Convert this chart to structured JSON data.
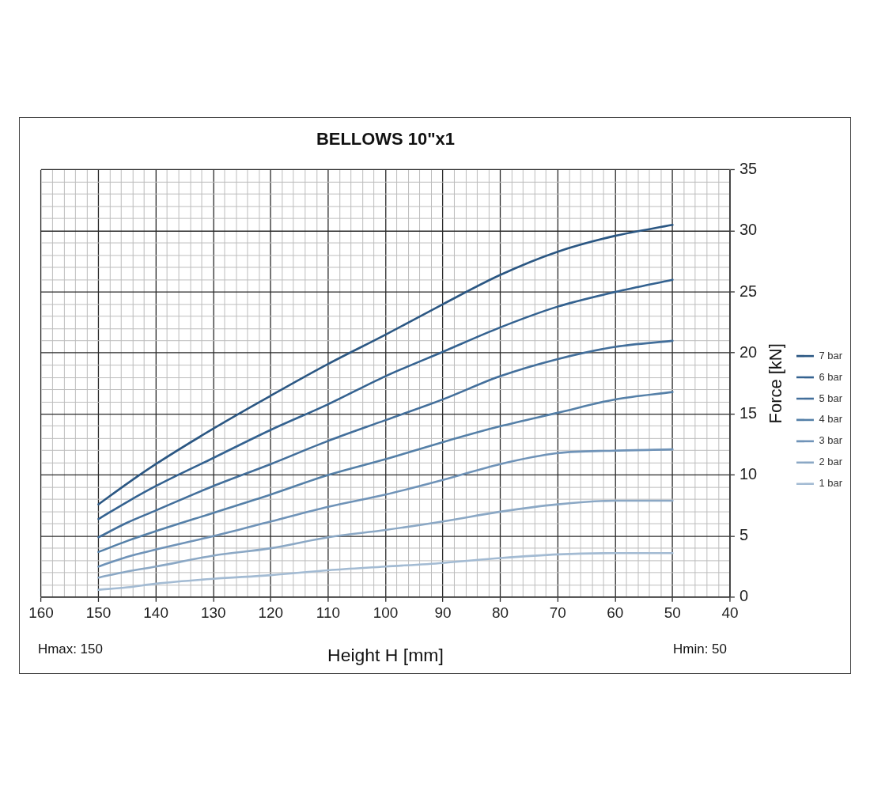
{
  "chart_data": {
    "type": "line",
    "title": "BELLOWS 10\"x1",
    "xlabel": "Height H [mm]",
    "ylabel": "Force [kN]",
    "x": [
      150,
      145,
      140,
      130,
      120,
      110,
      100,
      90,
      80,
      70,
      60,
      50
    ],
    "series": [
      {
        "name": "7 bar",
        "color": "#2b5783",
        "values": [
          7.6,
          9.3,
          10.9,
          13.8,
          16.5,
          19.1,
          21.5,
          24.0,
          26.4,
          28.3,
          29.6,
          30.5
        ]
      },
      {
        "name": "6 bar",
        "color": "#346290",
        "values": [
          6.4,
          7.8,
          9.1,
          11.4,
          13.7,
          15.8,
          18.1,
          20.1,
          22.1,
          23.8,
          25.0,
          26.0
        ]
      },
      {
        "name": "5 bar",
        "color": "#436f9b",
        "values": [
          4.9,
          6.1,
          7.1,
          9.1,
          10.9,
          12.8,
          14.5,
          16.2,
          18.1,
          19.5,
          20.5,
          21.0
        ]
      },
      {
        "name": "4 bar",
        "color": "#5580a8",
        "values": [
          3.7,
          4.6,
          5.4,
          6.9,
          8.4,
          10.0,
          11.3,
          12.7,
          14.0,
          15.1,
          16.2,
          16.8
        ]
      },
      {
        "name": "3 bar",
        "color": "#6f93b8",
        "values": [
          2.5,
          3.3,
          3.9,
          5.0,
          6.2,
          7.4,
          8.4,
          9.6,
          10.9,
          11.8,
          12.0,
          12.1
        ]
      },
      {
        "name": "2 bar",
        "color": "#8ba8c5",
        "values": [
          1.6,
          2.1,
          2.5,
          3.4,
          4.0,
          4.9,
          5.5,
          6.2,
          7.0,
          7.6,
          7.9,
          7.9
        ]
      },
      {
        "name": "1 bar",
        "color": "#a3bbd3",
        "values": [
          0.6,
          0.8,
          1.1,
          1.5,
          1.8,
          2.2,
          2.5,
          2.8,
          3.2,
          3.5,
          3.6,
          3.6
        ]
      }
    ],
    "xlim": [
      160,
      40
    ],
    "xticks": [
      160,
      {
        "value": 158,
        "label": null
      },
      {
        "value": 156,
        "label": null
      },
      {
        "value": 154,
        "label": null
      },
      {
        "value": 152,
        "label": null
      },
      150,
      {
        "value": 148,
        "label": null
      },
      {
        "value": 146,
        "label": null
      },
      {
        "value": 144,
        "label": null
      },
      {
        "value": 142,
        "label": null
      },
      140,
      {
        "value": 138,
        "label": null
      },
      {
        "value": 136,
        "label": null
      },
      {
        "value": 134,
        "label": null
      },
      {
        "value": 132,
        "label": null
      },
      130,
      {
        "value": 128,
        "label": null
      },
      {
        "value": 126,
        "label": null
      },
      {
        "value": 124,
        "label": null
      },
      {
        "value": 122,
        "label": null
      },
      120,
      {
        "value": 118,
        "label": null
      },
      {
        "value": 116,
        "label": null
      },
      {
        "value": 114,
        "label": null
      },
      {
        "value": 112,
        "label": null
      },
      110,
      {
        "value": 108,
        "label": null
      },
      {
        "value": 106,
        "label": null
      },
      {
        "value": 104,
        "label": null
      },
      {
        "value": 102,
        "label": null
      },
      100,
      {
        "value": 98,
        "label": null
      },
      {
        "value": 96,
        "label": null
      },
      {
        "value": 94,
        "label": null
      },
      {
        "value": 92,
        "label": null
      },
      90,
      {
        "value": 88,
        "label": null
      },
      {
        "value": 86,
        "label": null
      },
      {
        "value": 84,
        "label": null
      },
      {
        "value": 82,
        "label": null
      },
      80,
      {
        "value": 78,
        "label": null
      },
      {
        "value": 76,
        "label": null
      },
      {
        "value": 74,
        "label": null
      },
      {
        "value": 72,
        "label": null
      },
      70,
      {
        "value": 68,
        "label": null
      },
      {
        "value": 66,
        "label": null
      },
      {
        "value": 64,
        "label": null
      },
      {
        "value": 62,
        "label": null
      },
      60,
      {
        "value": 58,
        "label": null
      },
      {
        "value": 56,
        "label": null
      },
      {
        "value": 54,
        "label": null
      },
      {
        "value": 52,
        "label": null
      },
      50,
      {
        "value": 48,
        "label": null
      },
      {
        "value": 46,
        "label": null
      },
      {
        "value": 44,
        "label": null
      },
      {
        "value": 42,
        "label": null
      },
      40
    ],
    "ylim": [
      0,
      35
    ],
    "yticks": [
      0,
      {
        "value": 1,
        "label": null
      },
      {
        "value": 2,
        "label": null
      },
      {
        "value": 3,
        "label": null
      },
      {
        "value": 4,
        "label": null
      },
      5,
      {
        "value": 6,
        "label": null
      },
      {
        "value": 7,
        "label": null
      },
      {
        "value": 8,
        "label": null
      },
      {
        "value": 9,
        "label": null
      },
      10,
      {
        "value": 11,
        "label": null
      },
      {
        "value": 12,
        "label": null
      },
      {
        "value": 13,
        "label": null
      },
      {
        "value": 14,
        "label": null
      },
      15,
      {
        "value": 16,
        "label": null
      },
      {
        "value": 17,
        "label": null
      },
      {
        "value": 18,
        "label": null
      },
      {
        "value": 19,
        "label": null
      },
      20,
      {
        "value": 21,
        "label": null
      },
      {
        "value": 22,
        "label": null
      },
      {
        "value": 23,
        "label": null
      },
      {
        "value": 24,
        "label": null
      },
      25,
      {
        "value": 26,
        "label": null
      },
      {
        "value": 27,
        "label": null
      },
      {
        "value": 28,
        "label": null
      },
      {
        "value": 29,
        "label": null
      },
      30,
      {
        "value": 31,
        "label": null
      },
      {
        "value": 32,
        "label": null
      },
      {
        "value": 33,
        "label": null
      },
      {
        "value": 34,
        "label": null
      },
      35
    ],
    "grid": true,
    "legend": "right",
    "marker": "none",
    "line_style": "solid",
    "annotations": [
      "Hmax: 150",
      "Hmin: 50"
    ]
  }
}
